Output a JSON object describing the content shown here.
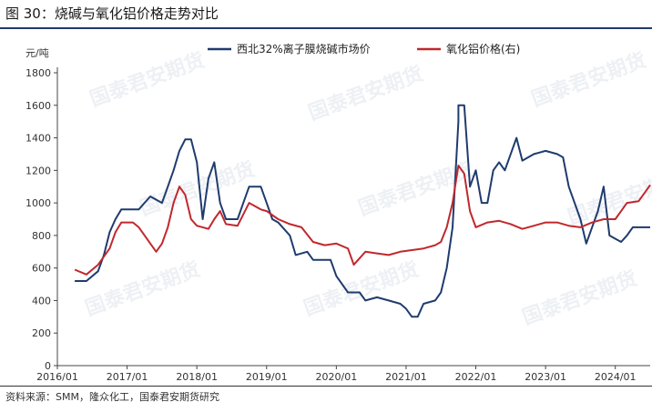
{
  "figure": {
    "title": "图 30：烧碱与氧化铝价格走势对比",
    "source": "资料来源：SMM，隆众化工，国泰君安期货研究",
    "watermark": "国泰君安期货"
  },
  "chart_data": {
    "type": "line",
    "ylabel": "元/吨",
    "ylim": [
      0,
      1800
    ],
    "yticks": [
      0,
      200,
      400,
      600,
      800,
      1000,
      1200,
      1400,
      1600,
      1800
    ],
    "xlim": [
      "2016/01",
      "2024/07"
    ],
    "xticks": [
      "2016/01",
      "2017/01",
      "2018/01",
      "2019/01",
      "2020/01",
      "2021/01",
      "2022/01",
      "2023/01",
      "2024/01"
    ],
    "legend_position": "top",
    "grid": false,
    "series": [
      {
        "name": "西北32%离子膜烧碱市场价",
        "color": "#1f3b6e",
        "points": [
          [
            "2016/04",
            520
          ],
          [
            "2016/06",
            520
          ],
          [
            "2016/08",
            580
          ],
          [
            "2016/09",
            680
          ],
          [
            "2016/10",
            820
          ],
          [
            "2016/11",
            900
          ],
          [
            "2016/12",
            960
          ],
          [
            "2017/03",
            960
          ],
          [
            "2017/04",
            1000
          ],
          [
            "2017/05",
            1040
          ],
          [
            "2017/07",
            1000
          ],
          [
            "2017/08",
            1100
          ],
          [
            "2017/09",
            1200
          ],
          [
            "2017/10",
            1320
          ],
          [
            "2017/11",
            1390
          ],
          [
            "2017/12",
            1390
          ],
          [
            "2018/01",
            1250
          ],
          [
            "2018/02",
            900
          ],
          [
            "2018/03",
            1150
          ],
          [
            "2018/04",
            1250
          ],
          [
            "2018/05",
            1000
          ],
          [
            "2018/06",
            900
          ],
          [
            "2018/08",
            900
          ],
          [
            "2018/09",
            1000
          ],
          [
            "2018/10",
            1100
          ],
          [
            "2018/12",
            1100
          ],
          [
            "2019/01",
            1000
          ],
          [
            "2019/02",
            900
          ],
          [
            "2019/03",
            880
          ],
          [
            "2019/05",
            800
          ],
          [
            "2019/06",
            680
          ],
          [
            "2019/08",
            700
          ],
          [
            "2019/09",
            650
          ],
          [
            "2019/12",
            650
          ],
          [
            "2020/01",
            550
          ],
          [
            "2020/03",
            450
          ],
          [
            "2020/05",
            450
          ],
          [
            "2020/06",
            400
          ],
          [
            "2020/08",
            420
          ],
          [
            "2020/10",
            400
          ],
          [
            "2020/12",
            380
          ],
          [
            "2021/01",
            350
          ],
          [
            "2021/02",
            300
          ],
          [
            "2021/03",
            300
          ],
          [
            "2021/04",
            380
          ],
          [
            "2021/06",
            400
          ],
          [
            "2021/07",
            450
          ],
          [
            "2021/08",
            600
          ],
          [
            "2021/09",
            850
          ],
          [
            "2021/10",
            1500
          ],
          [
            "2021/10",
            1600
          ],
          [
            "2021/11",
            1600
          ],
          [
            "2021/12",
            1100
          ],
          [
            "2022/01",
            1200
          ],
          [
            "2022/02",
            1000
          ],
          [
            "2022/03",
            1000
          ],
          [
            "2022/04",
            1200
          ],
          [
            "2022/05",
            1250
          ],
          [
            "2022/06",
            1200
          ],
          [
            "2022/07",
            1300
          ],
          [
            "2022/08",
            1400
          ],
          [
            "2022/09",
            1260
          ],
          [
            "2022/10",
            1280
          ],
          [
            "2022/11",
            1300
          ],
          [
            "2022/12",
            1310
          ],
          [
            "2023/01",
            1320
          ],
          [
            "2023/03",
            1300
          ],
          [
            "2023/04",
            1280
          ],
          [
            "2023/05",
            1100
          ],
          [
            "2023/06",
            1000
          ],
          [
            "2023/07",
            900
          ],
          [
            "2023/08",
            750
          ],
          [
            "2023/09",
            850
          ],
          [
            "2023/10",
            950
          ],
          [
            "2023/11",
            1100
          ],
          [
            "2023/12",
            800
          ],
          [
            "2024/01",
            780
          ],
          [
            "2024/02",
            760
          ],
          [
            "2024/03",
            800
          ],
          [
            "2024/04",
            850
          ],
          [
            "2024/07",
            850
          ]
        ]
      },
      {
        "name": "氧化铝价格(右)",
        "color": "#c0282d",
        "points": [
          [
            "2016/04",
            590
          ],
          [
            "2016/06",
            560
          ],
          [
            "2016/08",
            620
          ],
          [
            "2016/10",
            720
          ],
          [
            "2016/11",
            820
          ],
          [
            "2016/12",
            880
          ],
          [
            "2017/02",
            880
          ],
          [
            "2017/03",
            850
          ],
          [
            "2017/05",
            750
          ],
          [
            "2017/06",
            700
          ],
          [
            "2017/07",
            750
          ],
          [
            "2017/08",
            850
          ],
          [
            "2017/09",
            1000
          ],
          [
            "2017/10",
            1100
          ],
          [
            "2017/11",
            1050
          ],
          [
            "2017/12",
            900
          ],
          [
            "2018/01",
            860
          ],
          [
            "2018/03",
            840
          ],
          [
            "2018/04",
            900
          ],
          [
            "2018/05",
            950
          ],
          [
            "2018/06",
            870
          ],
          [
            "2018/08",
            860
          ],
          [
            "2018/10",
            1000
          ],
          [
            "2018/12",
            960
          ],
          [
            "2019/01",
            950
          ],
          [
            "2019/03",
            900
          ],
          [
            "2019/05",
            870
          ],
          [
            "2019/07",
            850
          ],
          [
            "2019/09",
            760
          ],
          [
            "2019/11",
            740
          ],
          [
            "2020/01",
            750
          ],
          [
            "2020/03",
            720
          ],
          [
            "2020/04",
            620
          ],
          [
            "2020/06",
            700
          ],
          [
            "2020/08",
            690
          ],
          [
            "2020/10",
            680
          ],
          [
            "2020/12",
            700
          ],
          [
            "2021/02",
            710
          ],
          [
            "2021/04",
            720
          ],
          [
            "2021/06",
            740
          ],
          [
            "2021/07",
            760
          ],
          [
            "2021/08",
            850
          ],
          [
            "2021/09",
            1000
          ],
          [
            "2021/10",
            1230
          ],
          [
            "2021/11",
            1180
          ],
          [
            "2021/12",
            950
          ],
          [
            "2022/01",
            850
          ],
          [
            "2022/03",
            880
          ],
          [
            "2022/05",
            890
          ],
          [
            "2022/07",
            870
          ],
          [
            "2022/09",
            840
          ],
          [
            "2022/11",
            860
          ],
          [
            "2023/01",
            880
          ],
          [
            "2023/03",
            880
          ],
          [
            "2023/05",
            860
          ],
          [
            "2023/07",
            850
          ],
          [
            "2023/09",
            880
          ],
          [
            "2023/11",
            900
          ],
          [
            "2024/01",
            900
          ],
          [
            "2024/02",
            950
          ],
          [
            "2024/03",
            1000
          ],
          [
            "2024/05",
            1010
          ],
          [
            "2024/06",
            1060
          ],
          [
            "2024/07",
            1110
          ]
        ]
      }
    ]
  }
}
